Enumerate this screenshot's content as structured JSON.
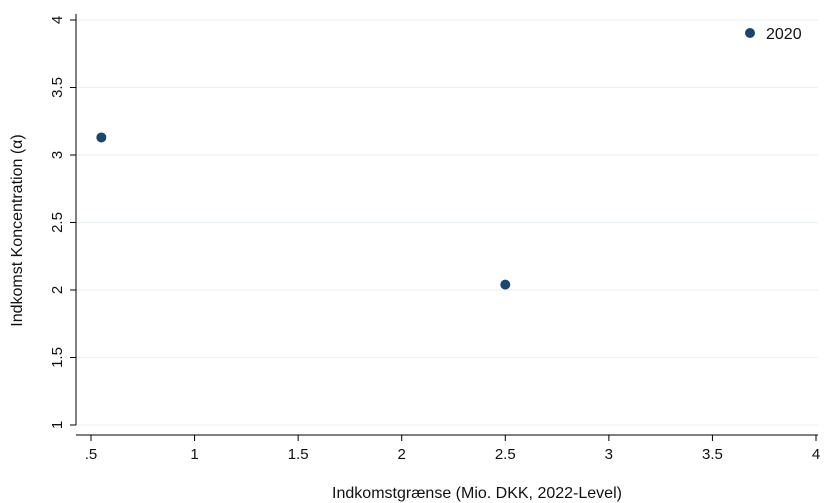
{
  "chart_data": {
    "type": "scatter",
    "xlabel": "Indkomstgrænse (Mio. DKK, 2022-Level)",
    "ylabel": "Indkomst Koncentration (α)",
    "xlim": [
      0.5,
      4
    ],
    "ylim": [
      1,
      4
    ],
    "x_ticks": [
      0.5,
      1,
      1.5,
      2,
      2.5,
      3,
      3.5,
      4
    ],
    "x_tick_labels": [
      ".5",
      "1",
      "1.5",
      "2",
      "2.5",
      "3",
      "3.5",
      "4"
    ],
    "y_ticks": [
      1,
      1.5,
      2,
      2.5,
      3,
      3.5,
      4
    ],
    "y_tick_labels": [
      "1",
      "1.5",
      "2",
      "2.5",
      "3",
      "3.5",
      "4"
    ],
    "grid": true,
    "legend_position": "top-right",
    "series": [
      {
        "name": "2020",
        "color": "#1a476f",
        "points": [
          {
            "x": 0.55,
            "y": 3.13
          },
          {
            "x": 2.5,
            "y": 2.04
          }
        ]
      }
    ]
  }
}
